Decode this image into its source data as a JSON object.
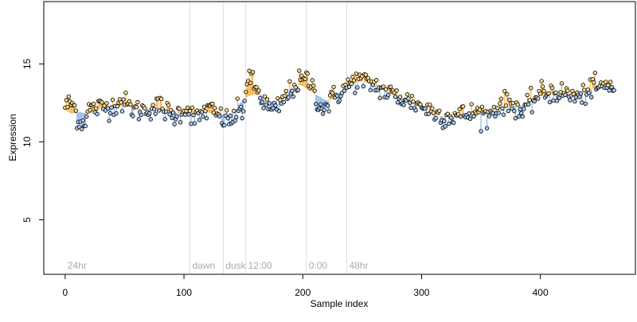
{
  "chart_data": {
    "type": "scatter",
    "title": "",
    "xlabel": "Sample index",
    "ylabel": "Expression",
    "xlim": [
      -18,
      480
    ],
    "ylim": [
      1.5,
      19
    ],
    "xticks": [
      0,
      100,
      200,
      300,
      400
    ],
    "xtick_labels": [
      "0",
      "100",
      "200",
      "300",
      "400"
    ],
    "yticks": [
      5,
      10,
      15
    ],
    "ytick_labels": [
      "5",
      "10",
      "15"
    ],
    "grid": false,
    "legend": "none",
    "colors": {
      "above_stem": "#f5b041",
      "below_stem": "#8fb6e6",
      "above_point": "#fdd78a",
      "below_point": "#a8c8ef",
      "point_border": "#000000",
      "marker_line": "#dddddd",
      "marker_text": "#aaaaaa",
      "axis": "#000000"
    },
    "reference_level": 12.6,
    "markers": [
      {
        "x": 0,
        "label": "24hr"
      },
      {
        "x": 105,
        "label": "dawn"
      },
      {
        "x": 133,
        "label": "dusk"
      },
      {
        "x": 152,
        "label": "12:00"
      },
      {
        "x": 203,
        "label": "0:00"
      },
      {
        "x": 237,
        "label": "48hr"
      }
    ],
    "n_points": 463,
    "series": [
      {
        "trend_knots": [
          [
            0,
            12.3
          ],
          [
            5,
            12.5
          ],
          [
            8,
            12.2
          ],
          [
            10,
            11.6
          ],
          [
            13,
            11.2
          ],
          [
            16,
            11.3
          ],
          [
            20,
            12.1
          ],
          [
            30,
            12.2
          ],
          [
            40,
            12.3
          ],
          [
            45,
            12.6
          ],
          [
            50,
            12.5
          ],
          [
            55,
            12.2
          ],
          [
            60,
            12.0
          ],
          [
            70,
            12.1
          ],
          [
            80,
            12.3
          ],
          [
            85,
            12.0
          ],
          [
            90,
            11.6
          ],
          [
            95,
            11.8
          ],
          [
            100,
            12.2
          ],
          [
            105,
            12.0
          ],
          [
            110,
            11.4
          ],
          [
            115,
            11.8
          ],
          [
            120,
            12.1
          ],
          [
            125,
            11.9
          ],
          [
            130,
            11.6
          ],
          [
            135,
            11.4
          ],
          [
            140,
            11.4
          ],
          [
            145,
            11.9
          ],
          [
            150,
            12.0
          ],
          [
            152,
            13.6
          ],
          [
            155,
            14.1
          ],
          [
            160,
            13.5
          ],
          [
            165,
            12.8
          ],
          [
            170,
            12.3
          ],
          [
            175,
            11.9
          ],
          [
            178,
            12.1
          ],
          [
            183,
            12.6
          ],
          [
            188,
            13.1
          ],
          [
            192,
            13.5
          ],
          [
            197,
            13.8
          ],
          [
            202,
            14.0
          ],
          [
            207,
            13.8
          ],
          [
            210,
            13.1
          ],
          [
            215,
            12.2
          ],
          [
            220,
            12.3
          ],
          [
            225,
            12.8
          ],
          [
            230,
            13.1
          ],
          [
            237,
            13.5
          ],
          [
            245,
            14.0
          ],
          [
            252,
            13.8
          ],
          [
            260,
            13.7
          ],
          [
            265,
            13.4
          ],
          [
            270,
            13.2
          ],
          [
            280,
            12.9
          ],
          [
            290,
            12.6
          ],
          [
            300,
            12.3
          ],
          [
            310,
            11.9
          ],
          [
            320,
            11.6
          ],
          [
            330,
            11.7
          ],
          [
            340,
            11.8
          ],
          [
            350,
            11.9
          ],
          [
            355,
            11.6
          ],
          [
            360,
            12.0
          ],
          [
            368,
            12.5
          ],
          [
            375,
            12.4
          ],
          [
            380,
            12.3
          ],
          [
            385,
            11.8
          ],
          [
            390,
            12.3
          ],
          [
            395,
            12.8
          ],
          [
            400,
            13.1
          ],
          [
            410,
            13.2
          ],
          [
            420,
            13.1
          ],
          [
            430,
            12.9
          ],
          [
            435,
            12.8
          ],
          [
            440,
            13.4
          ],
          [
            450,
            13.5
          ],
          [
            462,
            13.6
          ]
        ],
        "noise_sd": 0.35
      }
    ]
  }
}
